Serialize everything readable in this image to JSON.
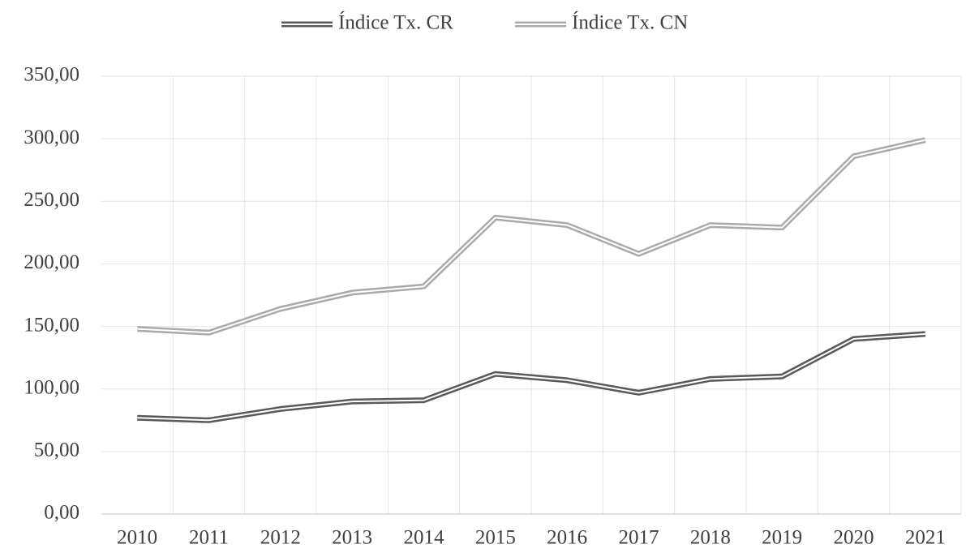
{
  "chart_data": {
    "type": "line",
    "categories": [
      "2010",
      "2011",
      "2012",
      "2013",
      "2014",
      "2015",
      "2016",
      "2017",
      "2018",
      "2019",
      "2020",
      "2021"
    ],
    "series": [
      {
        "name": "Índice Tx. CR",
        "color": "#595959",
        "values": [
          77,
          75,
          84,
          90,
          91,
          112,
          107,
          97,
          108,
          110,
          140,
          144
        ]
      },
      {
        "name": "Índice Tx. CN",
        "color": "#aaaaaa",
        "values": [
          148,
          145,
          164,
          177,
          182,
          237,
          231,
          208,
          231,
          229,
          286,
          299
        ]
      }
    ],
    "ylim": [
      0,
      350
    ],
    "yticks": [
      {
        "value": 0,
        "label": "0,00"
      },
      {
        "value": 50,
        "label": "50,00"
      },
      {
        "value": 100,
        "label": "100,00"
      },
      {
        "value": 150,
        "label": "150,00"
      },
      {
        "value": 200,
        "label": "200,00"
      },
      {
        "value": 250,
        "label": "250,00"
      },
      {
        "value": 300,
        "label": "300,00"
      },
      {
        "value": 350,
        "label": "350,00"
      }
    ],
    "grid": true,
    "legend": "top"
  }
}
